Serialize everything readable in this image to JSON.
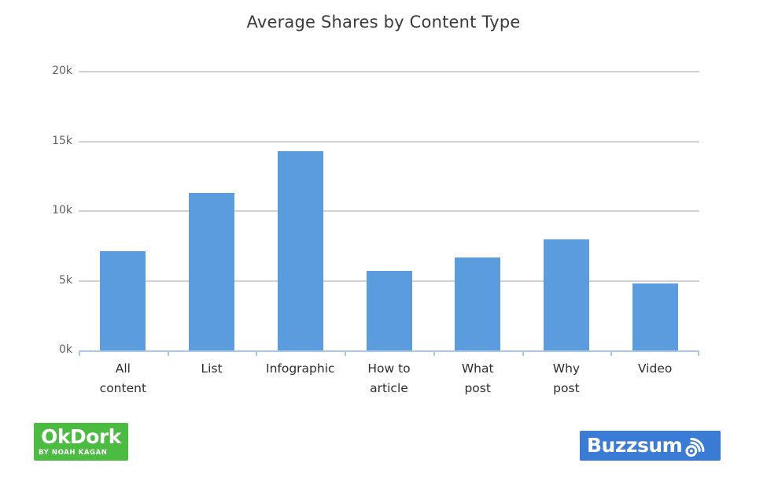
{
  "chart_data": {
    "type": "bar",
    "title": "Average Shares by Content Type",
    "xlabel": "",
    "ylabel": "",
    "categories": [
      "All content",
      "List",
      "Infographic",
      "How to article",
      "What post",
      "Why post",
      "Video"
    ],
    "category_lines": [
      [
        "All",
        "content"
      ],
      [
        "List"
      ],
      [
        "Infographic"
      ],
      [
        "How to",
        "article"
      ],
      [
        "What",
        "post"
      ],
      [
        "Why",
        "post"
      ],
      [
        "Video"
      ]
    ],
    "values": [
      7100,
      11300,
      14300,
      5700,
      6650,
      7950,
      4800
    ],
    "ylim": [
      0,
      20000
    ],
    "yticks": [
      0,
      5000,
      10000,
      15000,
      20000
    ],
    "ytick_labels": [
      "0k",
      "5k",
      "10k",
      "15k",
      "20k"
    ],
    "grid": true,
    "legend": false,
    "bar_color": "#5B9CDE",
    "gridline_color": "#D2D2D2",
    "axis_color": "#A9C7E9",
    "title_color": "#3A3A3A",
    "ytick_color": "#5F5F5F",
    "xtick_color": "#2E2E2E"
  },
  "branding": {
    "okdork": {
      "name": "OkDork",
      "tagline": "BY NOAH KAGAN",
      "bg_color": "#4CBB41",
      "text_color": "#FFFFFF"
    },
    "buzzsumo": {
      "name": "Buzzsumo",
      "bg_color": "#3A7BD5",
      "text_color": "#FFFFFF"
    }
  }
}
